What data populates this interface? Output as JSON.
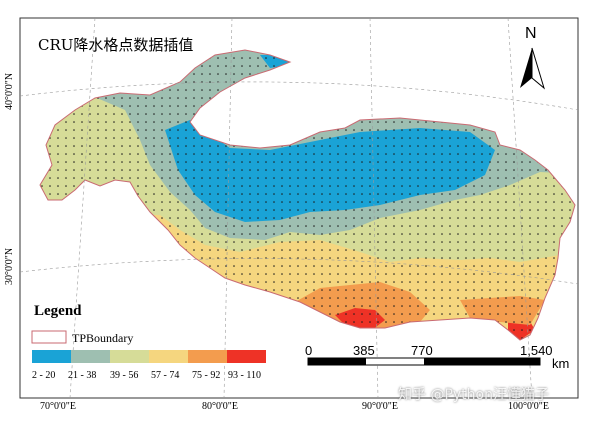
{
  "map": {
    "title": "CRU降水格点数据插值",
    "north_label": "N",
    "legend": {
      "title": "Legend",
      "boundary_label": "TPBoundary",
      "classes": [
        {
          "label": "2 - 20",
          "color": "#1aa3d6"
        },
        {
          "label": "21 - 38",
          "color": "#9ebfb1"
        },
        {
          "label": "39 - 56",
          "color": "#d6dc98"
        },
        {
          "label": "57 - 74",
          "color": "#f5d67f"
        },
        {
          "label": "75 - 92",
          "color": "#f39c4e"
        },
        {
          "label": "93 - 110",
          "color": "#ee3226"
        }
      ]
    },
    "scale_bar": {
      "ticks": [
        "0",
        "385",
        "770",
        "1,540"
      ],
      "unit": "km"
    },
    "graticule": {
      "longitudes": [
        "70°0'0\"E",
        "80°0'0\"E",
        "90°0'0\"E",
        "100°0'0\"E"
      ],
      "latitudes": [
        "40°0'0\"N",
        "30°0'0\"N"
      ]
    },
    "watermark": "知乎 @Python汪懂猫子"
  }
}
